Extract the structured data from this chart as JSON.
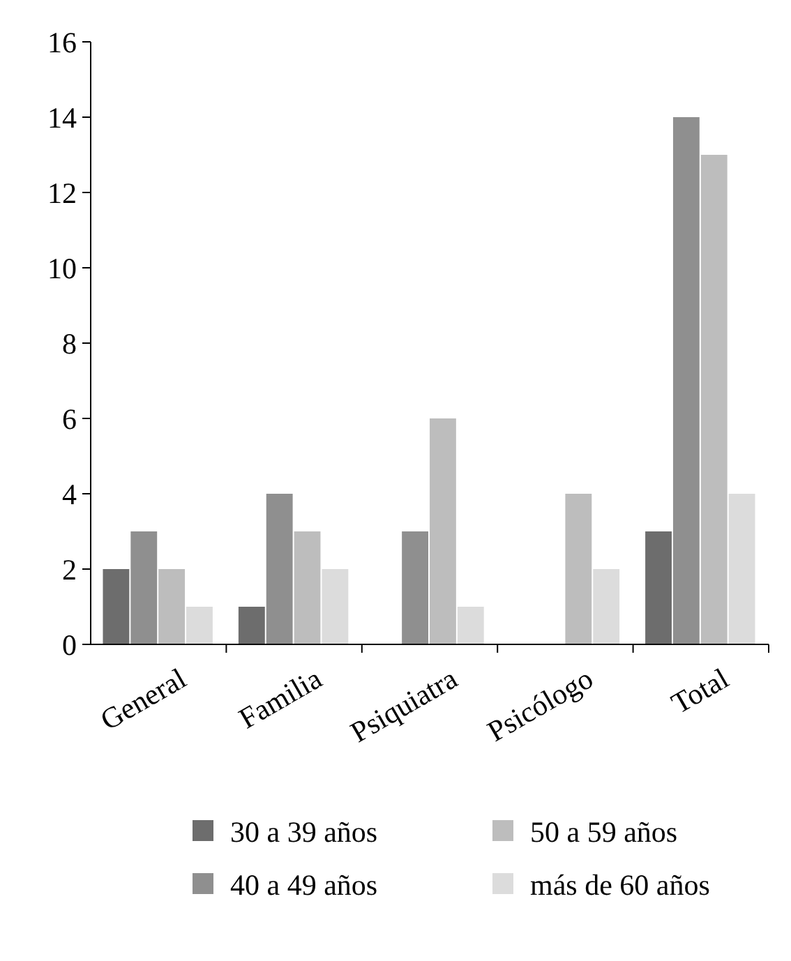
{
  "chart_data": {
    "type": "bar",
    "categories": [
      "General",
      "Familia",
      "Psiquiatra",
      "Psicólogo",
      "Total"
    ],
    "series": [
      {
        "name": "30 a 39 años",
        "color": "#6d6d6d",
        "values": [
          2,
          1,
          0,
          0,
          3
        ]
      },
      {
        "name": "40 a 49 años",
        "color": "#8f8f8f",
        "values": [
          3,
          4,
          3,
          0,
          14
        ]
      },
      {
        "name": "50 a 59 años",
        "color": "#bdbdbd",
        "values": [
          2,
          3,
          6,
          4,
          13
        ]
      },
      {
        "name": "más de 60 años",
        "color": "#dcdcdc",
        "values": [
          1,
          2,
          1,
          2,
          4
        ]
      }
    ],
    "ylim": [
      0,
      16
    ],
    "yticks": [
      0,
      2,
      4,
      6,
      8,
      10,
      12,
      14,
      16
    ],
    "grid": false,
    "legend": "bottom"
  }
}
